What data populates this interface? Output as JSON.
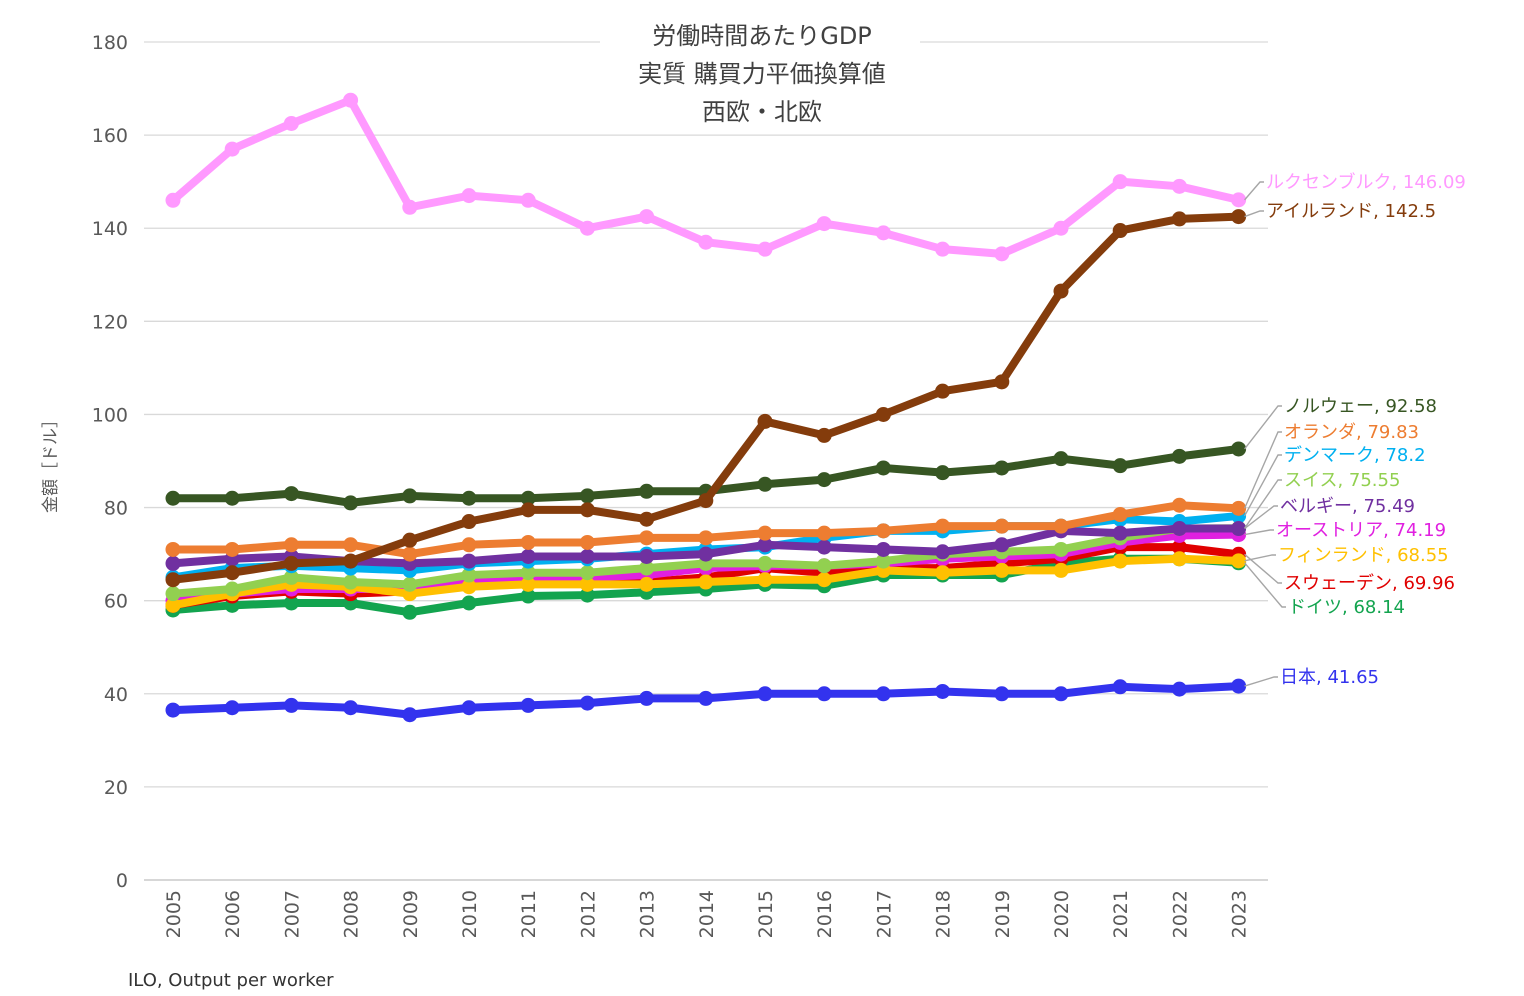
{
  "chart_data": {
    "type": "line",
    "title_lines": [
      "労働時間あたりGDP",
      "実質 購買力平価換算値",
      "西欧・北欧"
    ],
    "ylabel": "金額［ドル］",
    "source": "ILO, Output per worker",
    "ylim": [
      0,
      180
    ],
    "yticks": [
      0,
      20,
      40,
      60,
      80,
      100,
      120,
      140,
      160,
      180
    ],
    "grid": true,
    "x": [
      "2005",
      "2006",
      "2007",
      "2008",
      "2009",
      "2010",
      "2011",
      "2012",
      "2013",
      "2014",
      "2015",
      "2016",
      "2017",
      "2018",
      "2019",
      "2020",
      "2021",
      "2022",
      "2023"
    ],
    "series": [
      {
        "name": "ドイツ",
        "label": "ドイツ, 68.14",
        "color": "#13A44F",
        "values": [
          58,
          59,
          59.5,
          59.5,
          57.5,
          59.5,
          61,
          61.2,
          61.8,
          62.5,
          63.5,
          63.2,
          65.5,
          65.5,
          65.5,
          68,
          69,
          69,
          68.14
        ]
      },
      {
        "name": "スウェーデン",
        "label": "スウェーデン, 69.96",
        "color": "#E00000",
        "values": [
          59,
          61,
          62,
          61.5,
          62,
          63.5,
          64,
          64,
          64,
          65,
          67,
          66,
          67,
          67,
          68,
          69,
          71.5,
          71.5,
          69.96
        ]
      },
      {
        "name": "オーストリア",
        "label": "オーストリア, 74.19",
        "color": "#E020E0",
        "values": [
          60,
          61.5,
          62.5,
          62.5,
          62.5,
          64.5,
          65,
          65,
          65.5,
          67,
          67.5,
          67.5,
          68,
          69,
          69.5,
          70,
          72.5,
          74,
          74.19
        ]
      },
      {
        "name": "フィンランド",
        "label": "フィンランド, 68.55",
        "color": "#FFC000",
        "values": [
          59,
          61.5,
          63.5,
          63,
          61.5,
          63,
          63.5,
          63.5,
          63.5,
          64,
          64.5,
          64.5,
          66.5,
          66,
          66.5,
          66.5,
          68.5,
          69,
          68.55
        ]
      },
      {
        "name": "スイス",
        "label": "スイス, 75.55",
        "color": "#92D050",
        "values": [
          61.5,
          62.5,
          65,
          64,
          63.5,
          65.5,
          66,
          66,
          67,
          68,
          68,
          67.5,
          68.5,
          70,
          70.5,
          71,
          73.5,
          75.5,
          75.55
        ]
      },
      {
        "name": "デンマーク",
        "label": "デンマーク, 78.2",
        "color": "#00B0F0",
        "values": [
          65,
          67,
          67.5,
          67,
          66.5,
          68,
          68.5,
          69,
          70,
          71,
          71.5,
          73.5,
          75,
          75,
          76,
          76,
          77.5,
          77,
          78.2
        ]
      },
      {
        "name": "ベルギー",
        "label": "ベルギー, 75.49",
        "color": "#7030A0",
        "values": [
          68,
          69,
          69.5,
          68.5,
          68,
          68.5,
          69.5,
          69.5,
          69.5,
          70,
          72,
          71.5,
          71,
          70.5,
          72,
          75,
          74.5,
          75.5,
          75.49
        ]
      },
      {
        "name": "オランダ",
        "label": "オランダ, 79.83",
        "color": "#ED7D31",
        "values": [
          71,
          71,
          72,
          72,
          70,
          72,
          72.5,
          72.5,
          73.5,
          73.5,
          74.5,
          74.5,
          75,
          76,
          76,
          76,
          78.5,
          80.5,
          79.83
        ]
      },
      {
        "name": "ノルウェー",
        "label": "ノルウェー, 92.58",
        "color": "#375623",
        "values": [
          82,
          82,
          83,
          81,
          82.5,
          82,
          82,
          82.5,
          83.5,
          83.5,
          85,
          86,
          88.5,
          87.5,
          88.5,
          90.5,
          89,
          91,
          92.58
        ]
      },
      {
        "name": "アイルランド",
        "label": "アイルランド, 142.5",
        "color": "#843C0C",
        "values": [
          64.5,
          66,
          68,
          68.5,
          73,
          77,
          79.5,
          79.5,
          77.5,
          81.5,
          98.5,
          95.5,
          100,
          105,
          107,
          126.5,
          139.5,
          142,
          142.5
        ]
      },
      {
        "name": "ルクセンブルク",
        "label": "ルクセンブルク, 146.09",
        "color": "#FF99FF",
        "values": [
          146,
          157,
          162.5,
          167.5,
          144.5,
          147,
          146,
          140,
          142.5,
          137,
          135.5,
          141,
          139,
          135.5,
          134.5,
          140,
          150,
          149,
          146.09
        ]
      },
      {
        "name": "日本",
        "label": "日本, 41.65",
        "color": "#3333EE",
        "values": [
          36.5,
          37,
          37.5,
          37,
          35.5,
          37,
          37.5,
          38,
          39,
          39,
          40,
          40,
          40,
          40.5,
          40,
          40,
          41.5,
          41,
          41.65
        ]
      }
    ]
  }
}
